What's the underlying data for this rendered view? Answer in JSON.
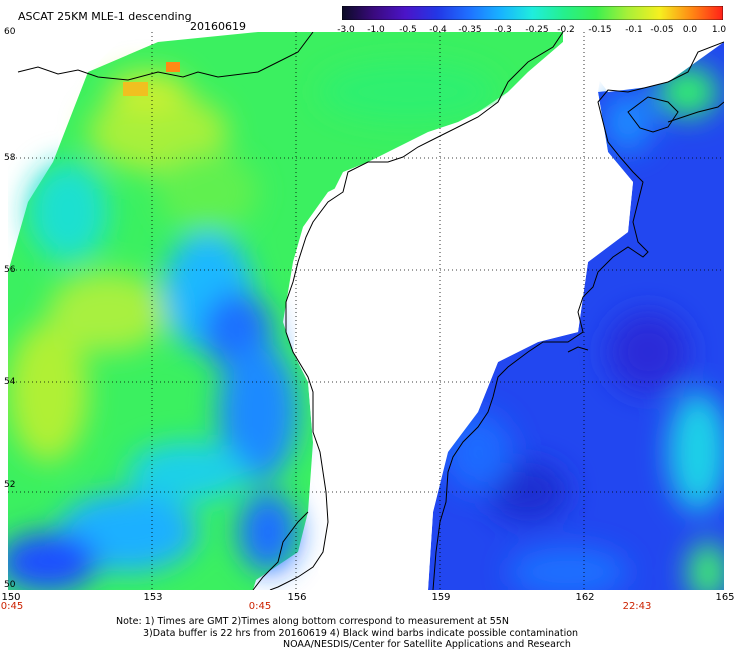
{
  "header": {
    "title": "ASCAT 25KM MLE-1 descending",
    "date": "20160619"
  },
  "colorbar": {
    "ticks": [
      "-3.0",
      "-1.0",
      "-0.5",
      "-0.4",
      "-0.35",
      "-0.3",
      "-0.25",
      "-0.2",
      "-0.15",
      "-0.1",
      "-0.05",
      "0.0",
      "1.0"
    ],
    "colors": [
      "#0b0b24",
      "#3a0a7e",
      "#4b14c8",
      "#2337e6",
      "#1f70ff",
      "#18b3ff",
      "#1feddd",
      "#25f08c",
      "#3bf050",
      "#a8f038",
      "#f5f020",
      "#ff8a14",
      "#ff2018"
    ]
  },
  "map": {
    "lat_labels": [
      "60",
      "58",
      "56",
      "54",
      "52",
      "50"
    ],
    "lon_labels": [
      "150",
      "153",
      "156",
      "159",
      "162",
      "165"
    ],
    "time_labels": [
      "0:45",
      "0:45",
      "22:43"
    ],
    "land_color": "#ffffff",
    "coast_color": "#000000",
    "grid_color": "#000000"
  },
  "footer": {
    "line1": "Note: 1) Times are GMT 2)Times along bottom correspond to measurement at 55N",
    "line2": "3)Data buffer is 22 hrs from 20160619 4) Black wind barbs indicate possible contamination",
    "line3": "NOAA/NESDIS/Center for Satellite Applications and Research"
  }
}
